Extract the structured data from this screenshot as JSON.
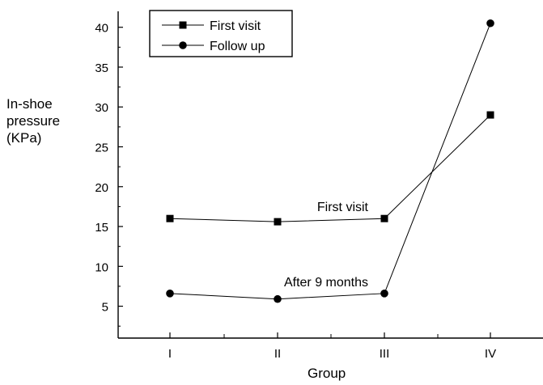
{
  "chart_data": {
    "type": "line",
    "categories": [
      "I",
      "II",
      "III",
      "IV"
    ],
    "series": [
      {
        "name": "First visit",
        "marker": "square",
        "values": [
          16.0,
          15.6,
          16.0,
          29.0
        ]
      },
      {
        "name": "Follow up",
        "marker": "circle",
        "values": [
          6.6,
          5.9,
          6.6,
          40.5
        ]
      }
    ],
    "title": "",
    "xlabel": "Group",
    "ylabel": "In-shoe\npressure\n(KPa)",
    "ylim": [
      1,
      42
    ],
    "yticks": [
      5,
      10,
      15,
      20,
      25,
      30,
      35,
      40
    ],
    "grid": false,
    "legend": "top-left",
    "annotations": [
      {
        "text": "First visit",
        "series": 0,
        "category": "III",
        "position": "above-left"
      },
      {
        "text": "After 9 months",
        "series": 1,
        "category": "III",
        "position": "above-left"
      }
    ],
    "colors": {
      "line": "#000000",
      "background": "#ffffff"
    }
  }
}
